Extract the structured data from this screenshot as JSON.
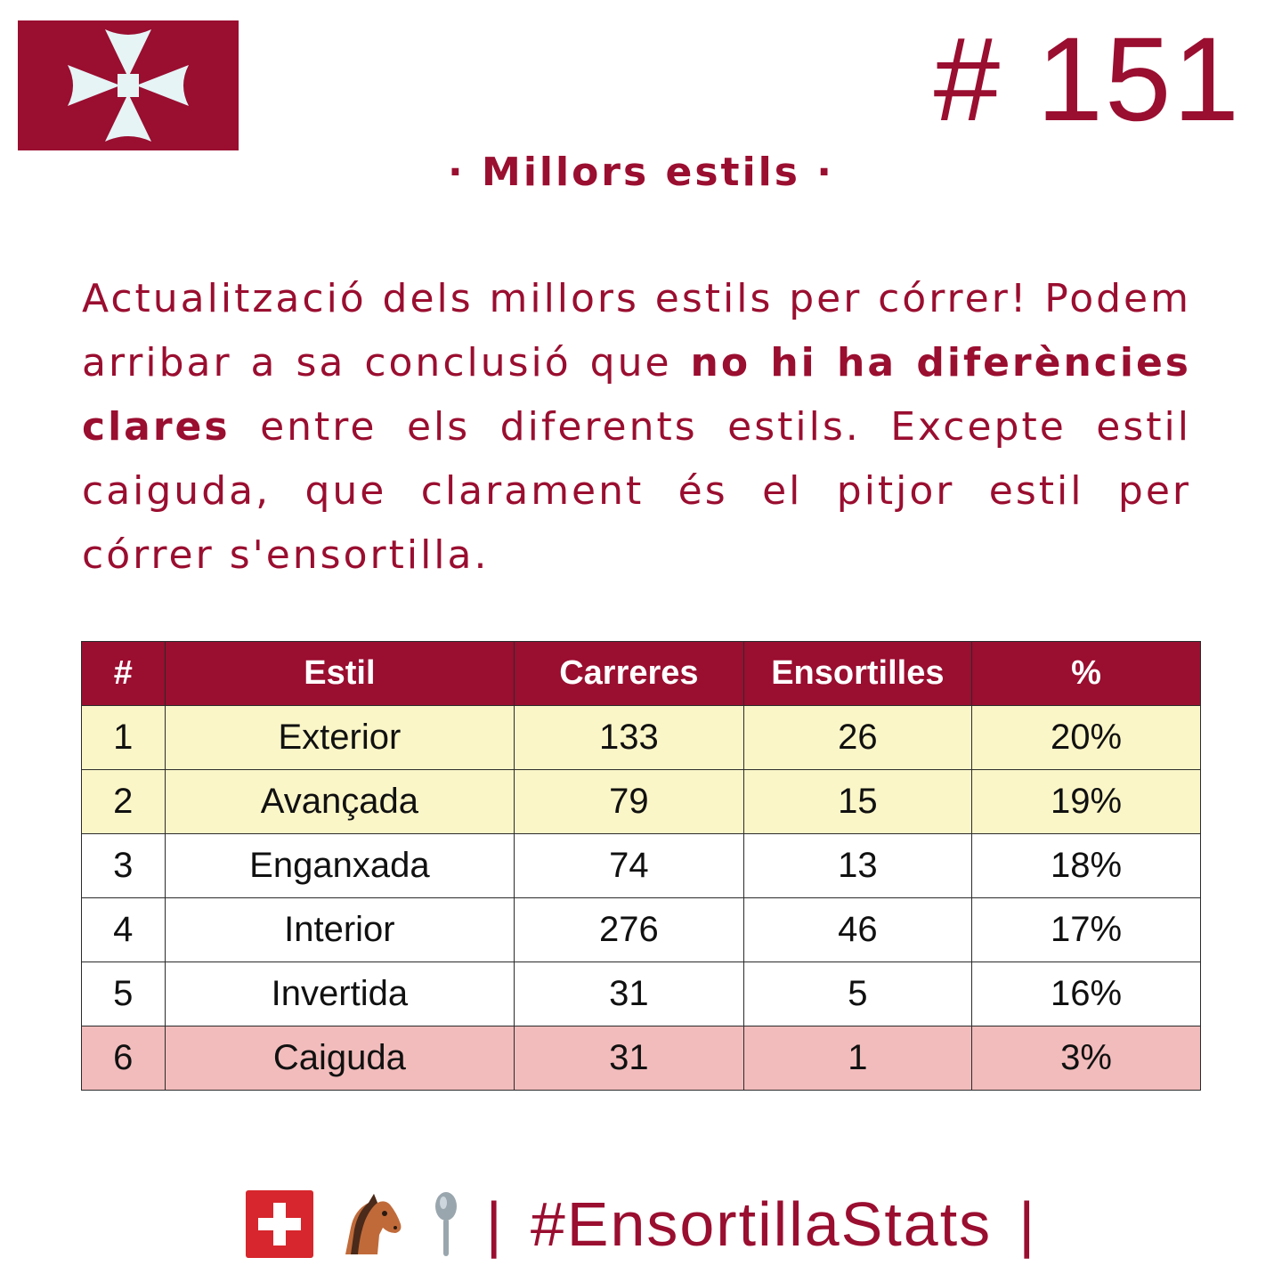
{
  "colors": {
    "brand": "#9a0e30",
    "highlight_top": "#fbf6c8",
    "highlight_worst": "#f2bcbc",
    "cross": "#e6f4f6"
  },
  "logo": {
    "icon": "maltese-cross-flag-icon"
  },
  "header": {
    "post_number": "# 151"
  },
  "section": {
    "title": "· Millors estils ·"
  },
  "intro": {
    "part1": "Actualització dels millors estils per córrer! Podem arribar a sa conclusió que ",
    "bold": "no hi ha diferències clares",
    "part2": " entre els diferents estils. Excepte estil caiguda, que clarament és el pitjor estil per córrer s'ensortilla."
  },
  "table": {
    "headers": [
      "#",
      "Estil",
      "Carreres",
      "Ensortilles",
      "%"
    ],
    "rows": [
      {
        "rank": "1",
        "style": "Exterior",
        "races": "133",
        "ensortilles": "26",
        "pct": "20%",
        "highlight": "top"
      },
      {
        "rank": "2",
        "style": "Avançada",
        "races": "79",
        "ensortilles": "15",
        "pct": "19%",
        "highlight": "top"
      },
      {
        "rank": "3",
        "style": "Enganxada",
        "races": "74",
        "ensortilles": "13",
        "pct": "18%",
        "highlight": "none"
      },
      {
        "rank": "4",
        "style": "Interior",
        "races": "276",
        "ensortilles": "46",
        "pct": "17%",
        "highlight": "none"
      },
      {
        "rank": "5",
        "style": "Invertida",
        "races": "31",
        "ensortilles": "5",
        "pct": "16%",
        "highlight": "none"
      },
      {
        "rank": "6",
        "style": "Caiguda",
        "races": "31",
        "ensortilles": "1",
        "pct": "3%",
        "highlight": "worst"
      }
    ]
  },
  "footer": {
    "icons": [
      "swiss-flag-icon",
      "horse-head-icon",
      "spoon-icon"
    ],
    "separator": "|",
    "hashtag": "#EnsortillaStats"
  }
}
